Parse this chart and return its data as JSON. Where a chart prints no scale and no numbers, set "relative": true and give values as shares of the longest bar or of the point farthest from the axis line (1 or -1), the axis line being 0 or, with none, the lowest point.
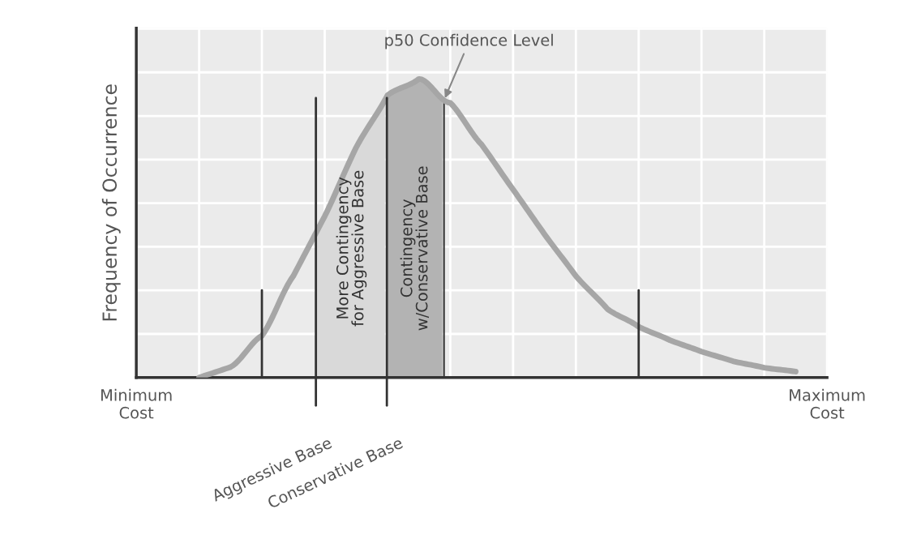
{
  "chart_data": {
    "type": "line",
    "relative": true,
    "ylabel": "Frequency of Occurrence",
    "categories": [
      "Minimum\nCost",
      null,
      null,
      null,
      null,
      null,
      null,
      null,
      null,
      null,
      null,
      null,
      null,
      null,
      null,
      null,
      null,
      null,
      null,
      null,
      null,
      null,
      "Maximum\nCost"
    ],
    "series": [
      {
        "color": "#a6a6a6",
        "values": [
          null,
          null,
          0.0,
          0.035,
          0.14,
          0.34,
          0.54,
          0.77,
          0.945,
          1.0,
          0.92,
          0.78,
          0.63,
          0.48,
          0.34,
          0.23,
          0.17,
          0.125,
          0.087,
          0.055,
          0.033,
          0.02,
          null
        ]
      }
    ],
    "annotations": [
      "Aggressive Base",
      "Conservative Base",
      "More Contingency\nfor Aggressive Base",
      "Contingency\nw/Conservative Base",
      "p50 Confidence Level"
    ],
    "grid": true,
    "legend": false,
    "marker": "none",
    "line_style": "solid"
  }
}
